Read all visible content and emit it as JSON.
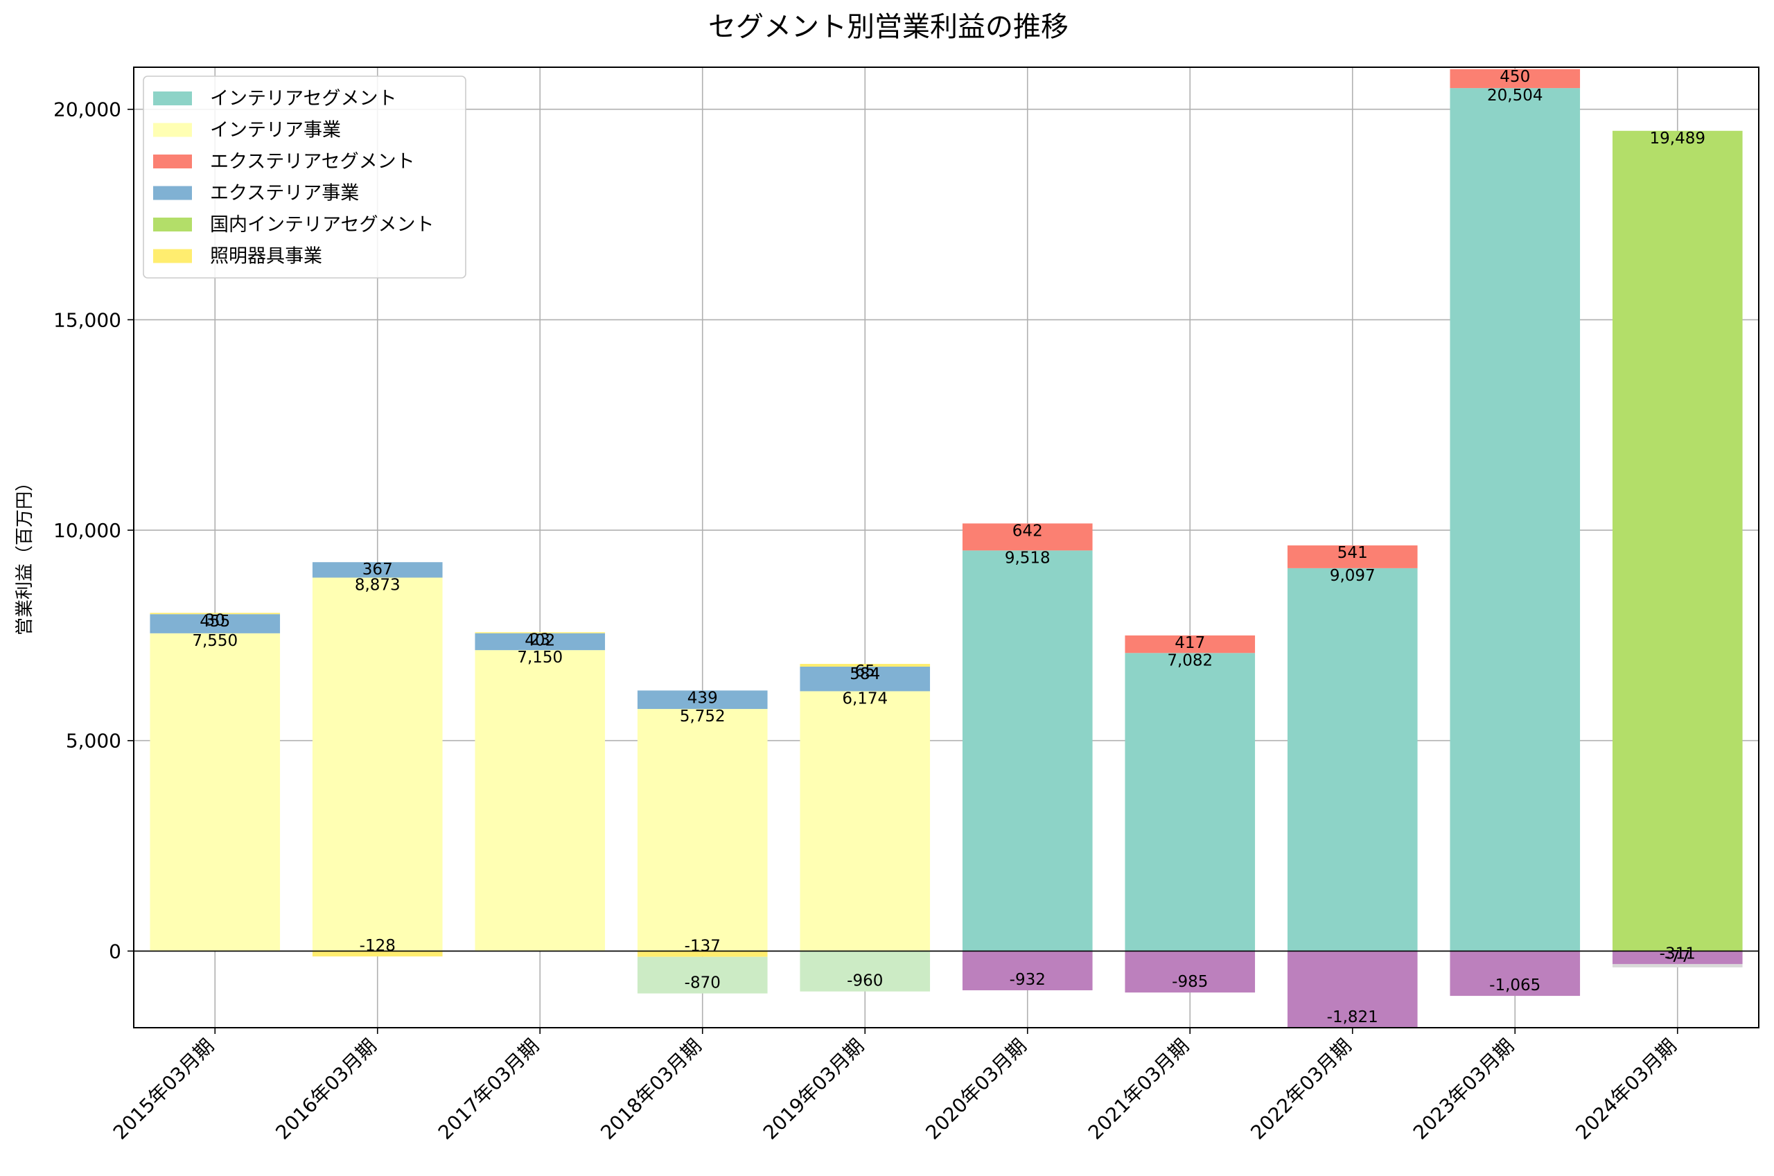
{
  "chart_data": {
    "type": "bar",
    "title": "セグメント別営業利益の推移",
    "xlabel": "",
    "ylabel": "営業利益（百万円）",
    "ylim": [
      -1821,
      21000
    ],
    "yticks": [
      0,
      5000,
      10000,
      15000,
      20000
    ],
    "ytick_labels": [
      "0",
      "5,000",
      "10,000",
      "15,000",
      "20,000"
    ],
    "grid": true,
    "legend_position": "top-left",
    "categories": [
      "2015年03月期",
      "2016年03月期",
      "2017年03月期",
      "2018年03月期",
      "2019年03月期",
      "2020年03月期",
      "2021年03月期",
      "2022年03月期",
      "2023年03月期",
      "2024年03月期"
    ],
    "series": [
      {
        "name": "インテリアセグメント",
        "color": "#8dd3c7",
        "in_legend": true,
        "values": [
          null,
          null,
          null,
          null,
          null,
          9518,
          7082,
          9097,
          20504,
          null
        ]
      },
      {
        "name": "インテリア事業",
        "color": "#ffffb3",
        "in_legend": true,
        "values": [
          7550,
          8873,
          7150,
          5752,
          6174,
          null,
          null,
          null,
          null,
          null
        ]
      },
      {
        "name": "エクステリアセグメント",
        "color": "#fb8072",
        "in_legend": true,
        "values": [
          null,
          null,
          null,
          null,
          null,
          642,
          417,
          541,
          450,
          null
        ]
      },
      {
        "name": "エクステリア事業",
        "color": "#80b1d3",
        "in_legend": true,
        "values": [
          455,
          367,
          402,
          439,
          584,
          null,
          null,
          null,
          null,
          null
        ]
      },
      {
        "name": "国内インテリアセグメント",
        "color": "#b3de69",
        "in_legend": true,
        "values": [
          null,
          null,
          null,
          null,
          null,
          null,
          null,
          null,
          null,
          19489
        ]
      },
      {
        "name": "照明器具事業",
        "color": "#ffed6f",
        "in_legend": true,
        "values": [
          30,
          -128,
          23,
          -137,
          65,
          null,
          null,
          null,
          null,
          null
        ]
      },
      {
        "name": "",
        "color": "#ccebc5",
        "in_legend": false,
        "values": [
          null,
          null,
          null,
          -870,
          -960,
          null,
          null,
          null,
          null,
          null
        ]
      },
      {
        "name": "",
        "color": "#bc80bd",
        "in_legend": false,
        "values": [
          null,
          null,
          null,
          null,
          null,
          -932,
          -985,
          -1821,
          -1065,
          -311
        ]
      },
      {
        "name": "",
        "color": "#d9d9d9",
        "in_legend": false,
        "values": [
          null,
          null,
          null,
          null,
          null,
          null,
          null,
          null,
          null,
          -77
        ]
      }
    ]
  }
}
